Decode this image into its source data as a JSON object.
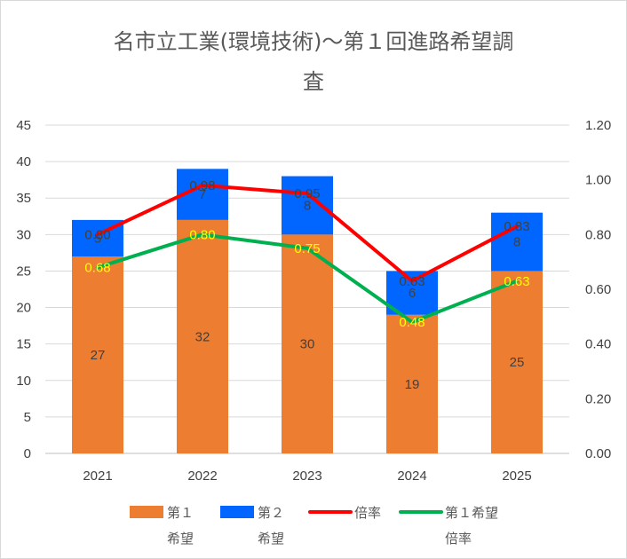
{
  "chart_data": {
    "type": "bar",
    "stacked": true,
    "title_lines": [
      "名市立工業(環境技術)〜第１回進路希望調",
      "査"
    ],
    "categories": [
      "2021",
      "2022",
      "2023",
      "2024",
      "2025"
    ],
    "y_left": {
      "range": [
        0,
        45
      ],
      "ticks": [
        "0",
        "5",
        "10",
        "15",
        "20",
        "25",
        "30",
        "35",
        "40",
        "45"
      ]
    },
    "y_right": {
      "range": [
        0,
        1.2
      ],
      "ticks": [
        "0.00",
        "0.20",
        "0.40",
        "0.60",
        "0.80",
        "1.00",
        "1.20"
      ]
    },
    "grid": true,
    "legend_position": "bottom",
    "series": [
      {
        "name": "第１希望",
        "legend_lines": [
          "第１",
          "希望"
        ],
        "type": "bar",
        "axis": "left",
        "color": "#ed7d31",
        "values": [
          27,
          32,
          30,
          19,
          25
        ],
        "labels": [
          "27",
          "32",
          "30",
          "19",
          "25"
        ]
      },
      {
        "name": "第２希望",
        "legend_lines": [
          "第２",
          "希望"
        ],
        "type": "bar",
        "axis": "left",
        "color": "#0066ff",
        "values": [
          5,
          7,
          8,
          6,
          8
        ],
        "labels": [
          "5",
          "7",
          "8",
          "6",
          "8"
        ]
      },
      {
        "name": "倍率",
        "legend_lines": [
          "倍率"
        ],
        "type": "line",
        "axis": "right",
        "color": "#ff0000",
        "values": [
          0.8,
          0.98,
          0.95,
          0.63,
          0.83
        ],
        "labels": [
          "0.80",
          "0.98",
          "0.95",
          "0.63",
          "0.83"
        ]
      },
      {
        "name": "第１希望倍率",
        "legend_lines": [
          "第１希望",
          "倍率"
        ],
        "type": "line",
        "axis": "right",
        "color": "#00b050",
        "label_color": "#ffff00",
        "values": [
          0.68,
          0.8,
          0.75,
          0.48,
          0.63
        ],
        "labels": [
          "0.68",
          "0.80",
          "0.75",
          "0.48",
          "0.63"
        ]
      }
    ]
  }
}
